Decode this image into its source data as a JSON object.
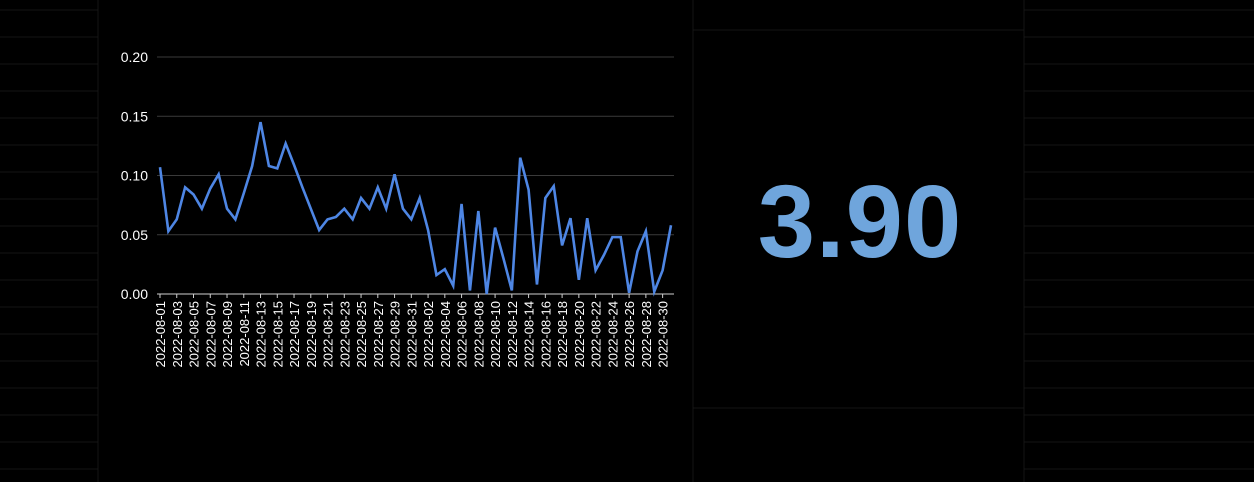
{
  "theme": {
    "background": "#000000",
    "line_color": "#4e86e4",
    "metric_color": "#6fa5dc",
    "text_color": "#ffffff",
    "gridline_color": "#3a3a3a"
  },
  "metric": {
    "value": "3.90"
  },
  "chart_data": {
    "type": "line",
    "title": "",
    "xlabel": "",
    "ylabel": "",
    "ylim": [
      0,
      0.2
    ],
    "yticks": [
      "0.00",
      "0.05",
      "0.10",
      "0.15",
      "0.20"
    ],
    "ytick_values": [
      0,
      0.05,
      0.1,
      0.15,
      0.2
    ],
    "grid": "horizontal",
    "x_ticks": [
      "2022-08-01",
      "2022-08-03",
      "2022-08-05",
      "2022-08-07",
      "2022-08-09",
      "2022-08-11",
      "2022-08-13",
      "2022-08-15",
      "2022-08-17",
      "2022-08-19",
      "2022-08-21",
      "2022-08-23",
      "2022-08-25",
      "2022-08-27",
      "2022-08-29",
      "2022-08-31",
      "2022-08-02",
      "2022-08-04",
      "2022-08-06",
      "2022-08-08",
      "2022-08-10",
      "2022-08-12",
      "2022-08-14",
      "2022-08-16",
      "2022-08-18",
      "2022-08-20",
      "2022-08-22",
      "2022-08-24",
      "2022-08-26",
      "2022-08-28",
      "2022-08-30"
    ],
    "series": [
      {
        "values": [
          0.107,
          0.053,
          0.063,
          0.09,
          0.084,
          0.072,
          0.089,
          0.101,
          0.072,
          0.063,
          0.085,
          0.108,
          0.145,
          0.108,
          0.106,
          0.127,
          0.109,
          0.09,
          0.072,
          0.054,
          0.063,
          0.065,
          0.072,
          0.063,
          0.081,
          0.072,
          0.09,
          0.072,
          0.101,
          0.072,
          0.063,
          0.081,
          0.054,
          0.016,
          0.021,
          0.007,
          0.076,
          0.003,
          0.07,
          0.0,
          0.056,
          0.03,
          0.003,
          0.115,
          0.088,
          0.008,
          0.081,
          0.091,
          0.041,
          0.064,
          0.012,
          0.064,
          0.02,
          0.033,
          0.048,
          0.048,
          0.001,
          0.036,
          0.053,
          0.002,
          0.02,
          0.058
        ]
      }
    ]
  }
}
